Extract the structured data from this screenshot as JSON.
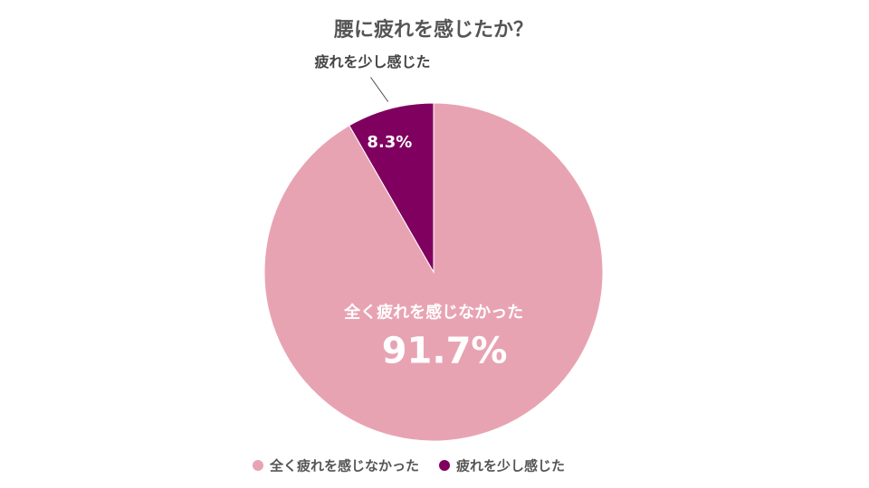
{
  "chart_data": {
    "type": "pie",
    "title": "腰に疲れを感じたか？",
    "categories": [
      "全く疲れを感じなかった",
      "疲れを少し感じた"
    ],
    "values": [
      91.7,
      8.3
    ],
    "value_labels": [
      "91.7%",
      "8.3%"
    ],
    "colors": [
      "#e8a3b3",
      "#800060"
    ],
    "legend": "bottom"
  }
}
